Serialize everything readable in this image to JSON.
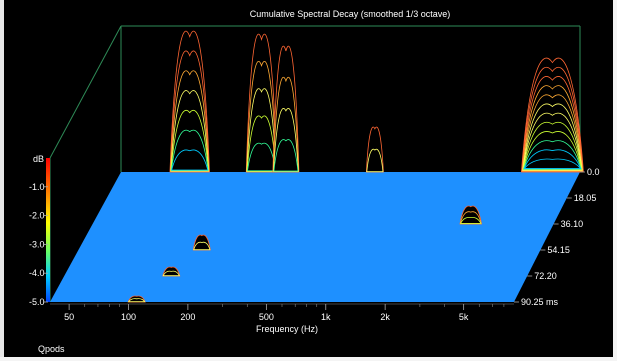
{
  "chart_data": {
    "type": "waterfall-3d",
    "title": "Cumulative Spectral Decay (smoothed 1/3 octave)",
    "xlabel": "Frequency (Hz)",
    "x_tick_labels": [
      "50",
      "100",
      "200",
      "500",
      "1k",
      "2k",
      "5k"
    ],
    "x_ticks_hz": [
      50,
      100,
      200,
      500,
      1000,
      2000,
      5000
    ],
    "xlim_hz": [
      40,
      9000
    ],
    "x_scale": "log",
    "zlabel": "dB",
    "z_tick_labels": [
      "-1.0",
      "-2.0",
      "-3.0",
      "-4.0",
      "-5.0"
    ],
    "zlim_db": [
      -5.0,
      0.0
    ],
    "time_tick_labels": [
      "0.0",
      "18.05",
      "36.10",
      "54.15",
      "72.20",
      "90.25 ms"
    ],
    "time_ticks_ms": [
      0.0,
      18.05,
      36.1,
      54.15,
      72.2,
      90.25
    ],
    "floor_color": "#1e90ff",
    "colorbar": [
      "#ff0000",
      "#ff8800",
      "#ffff00",
      "#66ff66",
      "#00ccff",
      "#0044ff"
    ],
    "footer": "Qpods",
    "peaks": [
      {
        "freq_hz": 90,
        "time_ms": 0,
        "db": -0.3,
        "curves": 7
      },
      {
        "freq_hz": 210,
        "time_ms": 0,
        "db": -0.4,
        "curves": 5
      },
      {
        "freq_hz": 280,
        "time_ms": 0,
        "db": -0.8,
        "curves": 4
      },
      {
        "freq_hz": 800,
        "time_ms": 0,
        "db": -3.5,
        "curves": 2
      },
      {
        "freq_hz": 6500,
        "time_ms": 0,
        "db": -1.2,
        "curves": 12
      },
      {
        "freq_hz": 3400,
        "time_ms": 36.1,
        "db": -4.4,
        "curves": 3
      },
      {
        "freq_hz": 170,
        "time_ms": 54.15,
        "db": -4.5,
        "curves": 2
      },
      {
        "freq_hz": 140,
        "time_ms": 72.2,
        "db": -4.7,
        "curves": 2
      },
      {
        "freq_hz": 110,
        "time_ms": 90.25,
        "db": -4.8,
        "curves": 2
      }
    ]
  }
}
